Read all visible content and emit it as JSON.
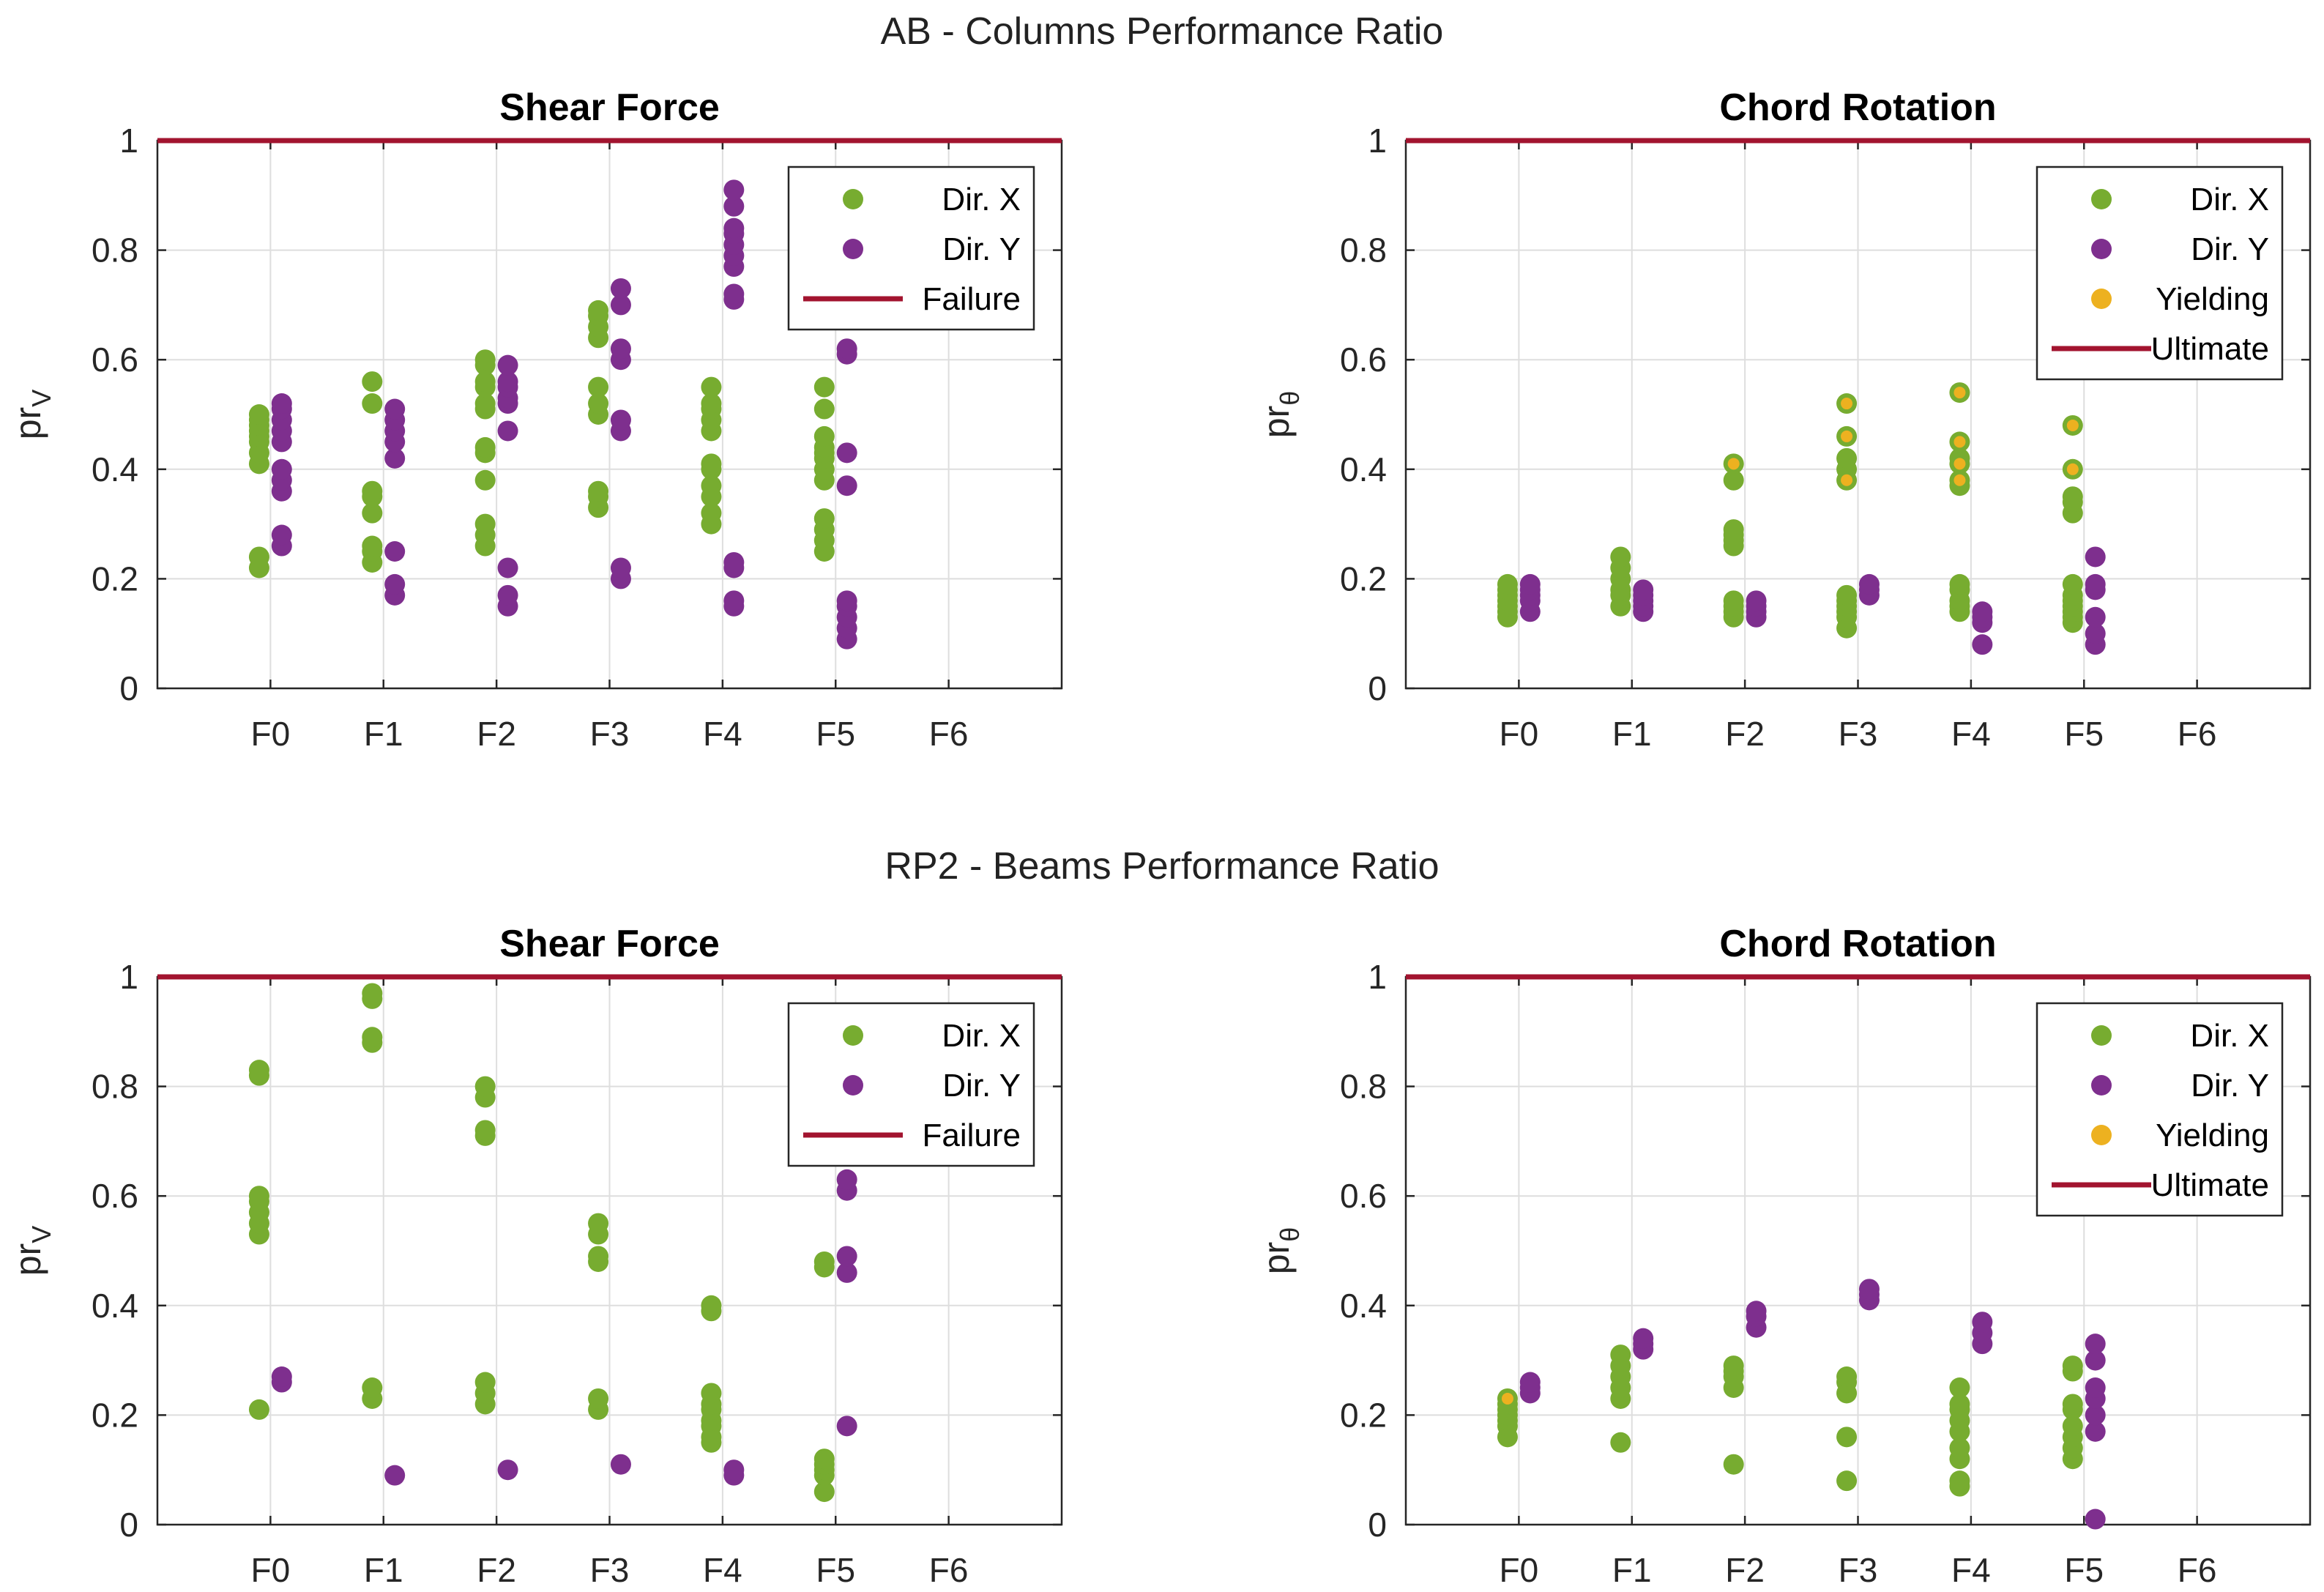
{
  "colors": {
    "dir_x": "#77AC30",
    "dir_y": "#7E2F8E",
    "yielding": "#EDB120",
    "limit": "#A2142F"
  },
  "sections": [
    {
      "title": "AB - Columns Performance Ratio"
    },
    {
      "title": "RP2 - Beams Performance Ratio"
    }
  ],
  "chart_data": [
    {
      "type": "scatter",
      "section": 0,
      "title": "Shear Force",
      "ylabel_base": "pr",
      "ylabel_sub": "V",
      "categories": [
        "F0",
        "F1",
        "F2",
        "F3",
        "F4",
        "F5",
        "F6"
      ],
      "xlim": [
        -1,
        7
      ],
      "ylim": [
        0,
        1
      ],
      "yticks": [
        "0",
        "0.2",
        "0.4",
        "0.6",
        "0.8",
        "1"
      ],
      "legend": [
        "Dir. X",
        "Dir. Y",
        "Failure"
      ],
      "limit_line": {
        "name": "Failure",
        "value": 1
      },
      "series": [
        {
          "name": "Dir. X",
          "offset": -0.1,
          "points": [
            [
              0,
              [
                0.22,
                0.24,
                0.41,
                0.43,
                0.45,
                0.46,
                0.47,
                0.48,
                0.49,
                0.5
              ]
            ],
            [
              1,
              [
                0.23,
                0.25,
                0.26,
                0.32,
                0.35,
                0.36,
                0.52,
                0.56
              ]
            ],
            [
              2,
              [
                0.26,
                0.28,
                0.3,
                0.38,
                0.43,
                0.44,
                0.51,
                0.52,
                0.55,
                0.56,
                0.59,
                0.6
              ]
            ],
            [
              3,
              [
                0.33,
                0.35,
                0.36,
                0.5,
                0.52,
                0.55,
                0.64,
                0.66,
                0.68,
                0.69
              ]
            ],
            [
              4,
              [
                0.3,
                0.32,
                0.35,
                0.37,
                0.4,
                0.41,
                0.47,
                0.49,
                0.51,
                0.52,
                0.55
              ]
            ],
            [
              5,
              [
                0.25,
                0.27,
                0.29,
                0.31,
                0.38,
                0.4,
                0.42,
                0.43,
                0.44,
                0.46,
                0.51,
                0.55
              ]
            ]
          ]
        },
        {
          "name": "Dir. Y",
          "offset": 0.1,
          "points": [
            [
              0,
              [
                0.26,
                0.28,
                0.36,
                0.38,
                0.4,
                0.45,
                0.47,
                0.49,
                0.51,
                0.52
              ]
            ],
            [
              1,
              [
                0.17,
                0.19,
                0.25,
                0.42,
                0.45,
                0.47,
                0.49,
                0.51
              ]
            ],
            [
              2,
              [
                0.15,
                0.17,
                0.22,
                0.47,
                0.52,
                0.53,
                0.55,
                0.56,
                0.59
              ]
            ],
            [
              3,
              [
                0.2,
                0.22,
                0.47,
                0.49,
                0.6,
                0.62,
                0.7,
                0.73
              ]
            ],
            [
              4,
              [
                0.15,
                0.16,
                0.22,
                0.23,
                0.71,
                0.72,
                0.77,
                0.79,
                0.81,
                0.83,
                0.84,
                0.88,
                0.91
              ]
            ],
            [
              5,
              [
                0.09,
                0.11,
                0.13,
                0.15,
                0.16,
                0.37,
                0.43,
                0.61,
                0.62
              ]
            ]
          ]
        }
      ]
    },
    {
      "type": "scatter",
      "section": 0,
      "title": "Chord Rotation",
      "ylabel_base": "pr",
      "ylabel_sub": "θ",
      "categories": [
        "F0",
        "F1",
        "F2",
        "F3",
        "F4",
        "F5",
        "F6"
      ],
      "xlim": [
        -1,
        7
      ],
      "ylim": [
        0,
        1
      ],
      "yticks": [
        "0",
        "0.2",
        "0.4",
        "0.6",
        "0.8",
        "1"
      ],
      "legend": [
        "Dir. X",
        "Dir. Y",
        "Yielding",
        "Ultimate"
      ],
      "limit_line": {
        "name": "Ultimate",
        "value": 1
      },
      "series": [
        {
          "name": "Dir. X",
          "offset": -0.1,
          "points": [
            [
              0,
              [
                0.13,
                0.14,
                0.15,
                0.16,
                0.17,
                0.18,
                0.19
              ]
            ],
            [
              1,
              [
                0.15,
                0.17,
                0.18,
                0.2,
                0.22,
                0.24
              ]
            ],
            [
              2,
              [
                0.13,
                0.14,
                0.15,
                0.16,
                0.26,
                0.27,
                0.28,
                0.29,
                0.38,
                0.41
              ]
            ],
            [
              3,
              [
                0.11,
                0.13,
                0.14,
                0.15,
                0.16,
                0.17,
                0.38,
                0.4,
                0.42,
                0.46,
                0.52
              ]
            ],
            [
              4,
              [
                0.14,
                0.15,
                0.16,
                0.18,
                0.19,
                0.37,
                0.38,
                0.41,
                0.42,
                0.45,
                0.54
              ]
            ],
            [
              5,
              [
                0.12,
                0.13,
                0.14,
                0.15,
                0.16,
                0.17,
                0.19,
                0.32,
                0.34,
                0.35,
                0.4,
                0.48
              ]
            ]
          ]
        },
        {
          "name": "Dir. Y",
          "offset": 0.1,
          "points": [
            [
              0,
              [
                0.14,
                0.16,
                0.17,
                0.18,
                0.19
              ]
            ],
            [
              1,
              [
                0.14,
                0.15,
                0.16,
                0.17,
                0.18
              ]
            ],
            [
              2,
              [
                0.13,
                0.14,
                0.15,
                0.16
              ]
            ],
            [
              3,
              [
                0.17,
                0.18,
                0.19
              ]
            ],
            [
              4,
              [
                0.08,
                0.12,
                0.13,
                0.14
              ]
            ],
            [
              5,
              [
                0.08,
                0.1,
                0.13,
                0.18,
                0.19,
                0.24
              ]
            ]
          ]
        },
        {
          "name": "Yielding",
          "offset": -0.1,
          "small": true,
          "points": [
            [
              2,
              [
                0.41
              ]
            ],
            [
              3,
              [
                0.38,
                0.46,
                0.52
              ]
            ],
            [
              4,
              [
                0.38,
                0.41,
                0.45,
                0.54
              ]
            ],
            [
              5,
              [
                0.4,
                0.48
              ]
            ]
          ]
        }
      ]
    },
    {
      "type": "scatter",
      "section": 1,
      "title": "Shear Force",
      "ylabel_base": "pr",
      "ylabel_sub": "V",
      "categories": [
        "F0",
        "F1",
        "F2",
        "F3",
        "F4",
        "F5",
        "F6"
      ],
      "xlim": [
        -1,
        7
      ],
      "ylim": [
        0,
        1
      ],
      "yticks": [
        "0",
        "0.2",
        "0.4",
        "0.6",
        "0.8",
        "1"
      ],
      "legend": [
        "Dir. X",
        "Dir. Y",
        "Failure"
      ],
      "limit_line": {
        "name": "Failure",
        "value": 1
      },
      "series": [
        {
          "name": "Dir. X",
          "offset": -0.1,
          "points": [
            [
              0,
              [
                0.21,
                0.53,
                0.55,
                0.57,
                0.59,
                0.6,
                0.82,
                0.83
              ]
            ],
            [
              1,
              [
                0.23,
                0.25,
                0.88,
                0.89,
                0.96,
                0.97
              ]
            ],
            [
              2,
              [
                0.22,
                0.24,
                0.26,
                0.71,
                0.72,
                0.78,
                0.8
              ]
            ],
            [
              3,
              [
                0.21,
                0.23,
                0.48,
                0.49,
                0.53,
                0.55
              ]
            ],
            [
              4,
              [
                0.15,
                0.16,
                0.18,
                0.19,
                0.21,
                0.22,
                0.24,
                0.39,
                0.4
              ]
            ],
            [
              5,
              [
                0.06,
                0.09,
                0.1,
                0.11,
                0.12,
                0.47,
                0.48
              ]
            ]
          ]
        },
        {
          "name": "Dir. Y",
          "offset": 0.1,
          "points": [
            [
              0,
              [
                0.26,
                0.27
              ]
            ],
            [
              1,
              [
                0.09
              ]
            ],
            [
              2,
              [
                0.1
              ]
            ],
            [
              3,
              [
                0.11
              ]
            ],
            [
              4,
              [
                0.09,
                0.1
              ]
            ],
            [
              5,
              [
                0.18,
                0.46,
                0.49,
                0.61,
                0.63
              ]
            ]
          ]
        }
      ]
    },
    {
      "type": "scatter",
      "section": 1,
      "title": "Chord Rotation",
      "ylabel_base": "pr",
      "ylabel_sub": "θ",
      "categories": [
        "F0",
        "F1",
        "F2",
        "F3",
        "F4",
        "F5",
        "F6"
      ],
      "xlim": [
        -1,
        7
      ],
      "ylim": [
        0,
        1
      ],
      "yticks": [
        "0",
        "0.2",
        "0.4",
        "0.6",
        "0.8",
        "1"
      ],
      "legend": [
        "Dir. X",
        "Dir. Y",
        "Yielding",
        "Ultimate"
      ],
      "limit_line": {
        "name": "Ultimate",
        "value": 1
      },
      "series": [
        {
          "name": "Dir. X",
          "offset": -0.1,
          "points": [
            [
              0,
              [
                0.16,
                0.18,
                0.19,
                0.2,
                0.21,
                0.22,
                0.23
              ]
            ],
            [
              1,
              [
                0.15,
                0.23,
                0.25,
                0.27,
                0.29,
                0.31
              ]
            ],
            [
              2,
              [
                0.11,
                0.25,
                0.27,
                0.28,
                0.29
              ]
            ],
            [
              3,
              [
                0.08,
                0.16,
                0.24,
                0.26,
                0.27
              ]
            ],
            [
              4,
              [
                0.07,
                0.08,
                0.12,
                0.14,
                0.17,
                0.19,
                0.21,
                0.22,
                0.25
              ]
            ],
            [
              5,
              [
                0.12,
                0.14,
                0.16,
                0.18,
                0.21,
                0.22,
                0.28,
                0.29
              ]
            ]
          ]
        },
        {
          "name": "Dir. Y",
          "offset": 0.1,
          "points": [
            [
              0,
              [
                0.24,
                0.25,
                0.26
              ]
            ],
            [
              1,
              [
                0.32,
                0.33,
                0.34
              ]
            ],
            [
              2,
              [
                0.36,
                0.38,
                0.39
              ]
            ],
            [
              3,
              [
                0.41,
                0.42,
                0.43
              ]
            ],
            [
              4,
              [
                0.33,
                0.35,
                0.37
              ]
            ],
            [
              5,
              [
                0.01,
                0.17,
                0.2,
                0.23,
                0.25,
                0.3,
                0.33
              ]
            ]
          ]
        },
        {
          "name": "Yielding",
          "offset": -0.1,
          "small": true,
          "points": [
            [
              0,
              [
                0.23
              ]
            ]
          ]
        }
      ]
    }
  ]
}
